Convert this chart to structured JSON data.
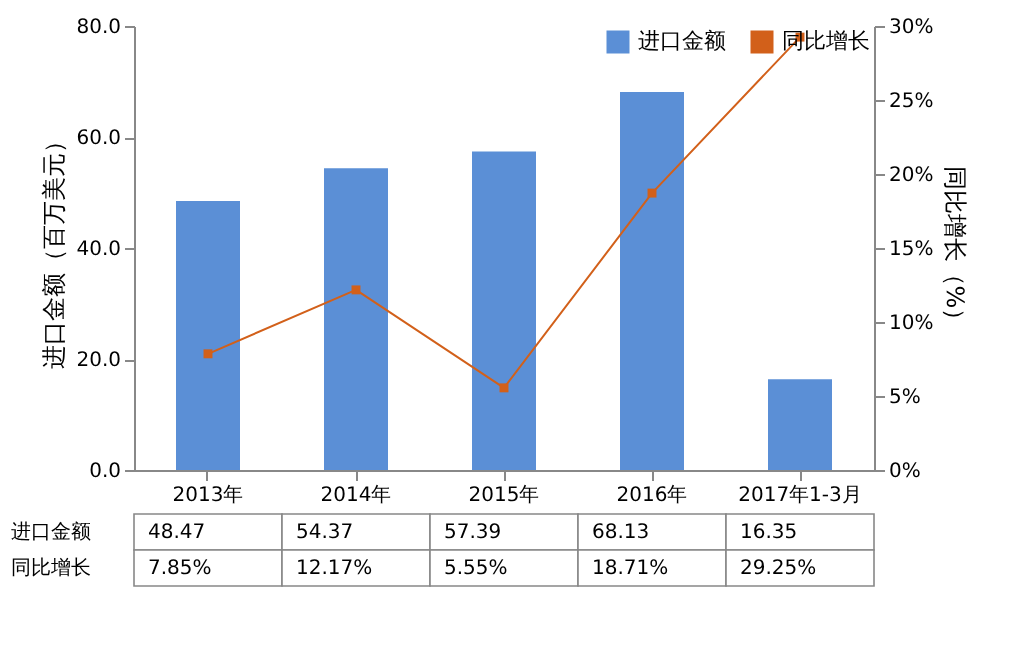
{
  "chart_data": {
    "type": "bar",
    "categories": [
      "2013年",
      "2014年",
      "2015年",
      "2016年",
      "2017年1-3月"
    ],
    "ylabel": "进口金额（百万美元）",
    "y2label": "同比增长（%）",
    "ylim": [
      0,
      80
    ],
    "yticks": [
      {
        "value": 0,
        "label": "0.0"
      },
      {
        "value": 20,
        "label": "20.0"
      },
      {
        "value": 40,
        "label": "40.0"
      },
      {
        "value": 60,
        "label": "60.0"
      },
      {
        "value": 80,
        "label": "80.0"
      }
    ],
    "y2lim": [
      0,
      30
    ],
    "y2ticks": [
      {
        "value": 0,
        "label": "0%"
      },
      {
        "value": 5,
        "label": "5%"
      },
      {
        "value": 10,
        "label": "10%"
      },
      {
        "value": 15,
        "label": "15%"
      },
      {
        "value": 20,
        "label": "20%"
      },
      {
        "value": 25,
        "label": "25%"
      },
      {
        "value": 30,
        "label": "30%"
      }
    ],
    "series": [
      {
        "name": "进口金额",
        "color": "#5b8fd6",
        "values": [
          48.47,
          54.37,
          57.39,
          68.13,
          16.35
        ],
        "value_labels": [
          "48.47",
          "54.37",
          "57.39",
          "68.13",
          "16.35"
        ]
      },
      {
        "name": "同比增长",
        "type": "line",
        "axis": "y2",
        "color": "#d2601a",
        "marker": "square",
        "values": [
          7.85,
          12.17,
          5.55,
          18.71,
          29.25
        ],
        "value_labels": [
          "7.85%",
          "12.17%",
          "5.55%",
          "18.71%",
          "29.25%"
        ]
      }
    ],
    "legend": "top right",
    "grid": false
  }
}
